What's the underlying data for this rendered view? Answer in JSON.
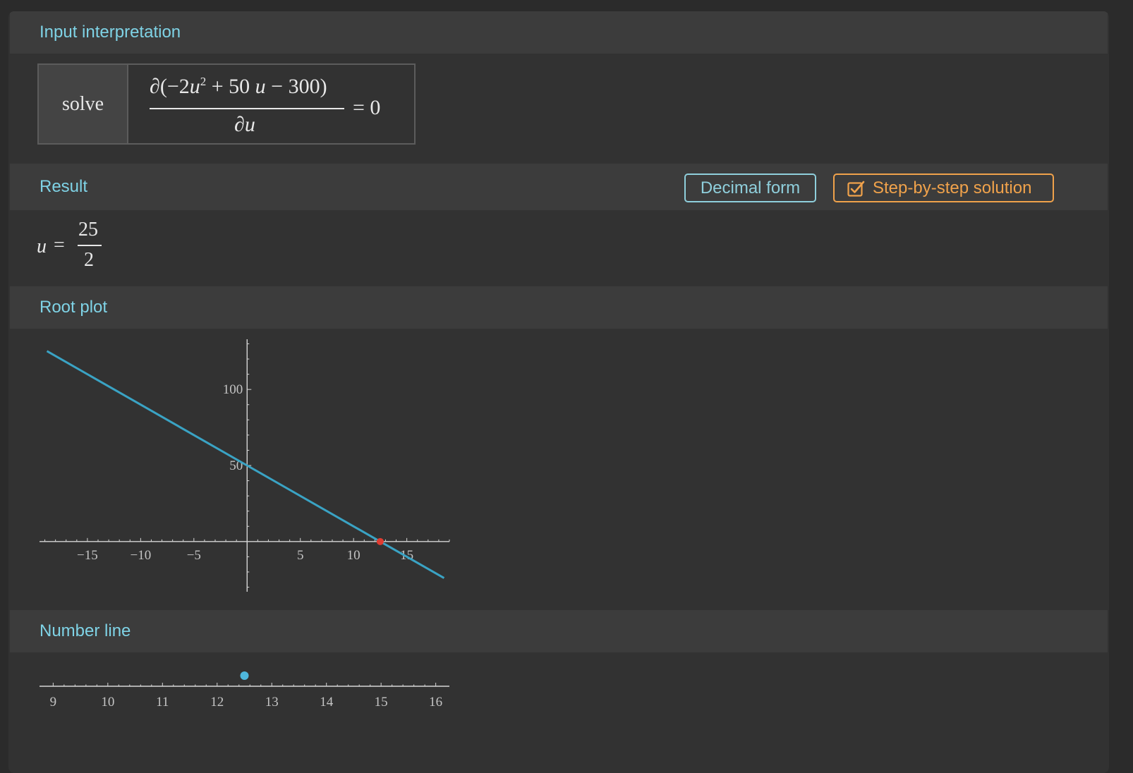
{
  "colors": {
    "accent_title": "#7fd3e6",
    "button_decimal": "#8fcfdc",
    "button_step": "#f0a24b",
    "plot_line": "#3aa3c4",
    "root_marker": "#e03c31",
    "number_line_point": "#4fb7dc"
  },
  "pods": {
    "input_title": "Input interpretation",
    "result_title": "Result",
    "root_plot_title": "Root plot",
    "number_line_title": "Number line"
  },
  "input": {
    "solve_label": "solve",
    "partial_open": "∂(−2",
    "var_u": "u",
    "exponent": "2",
    "middle": " + 50 ",
    "tail": " − 300)",
    "denominator": "∂u",
    "equals_rhs": "= 0"
  },
  "buttons": {
    "decimal_form": "Decimal form",
    "step_by_step": "Step-by-step solution",
    "step_icon": "checkbox-icon"
  },
  "result": {
    "variable": "u",
    "equals": "=",
    "numerator": "25",
    "denominator": "2"
  },
  "chart_data": [
    {
      "type": "line",
      "x_range": [
        -19.5,
        19
      ],
      "y_range": [
        -33,
        133
      ],
      "series": [
        {
          "x": [
            -18.8,
            -10,
            0,
            10,
            12.5,
            18.5
          ],
          "y": [
            125.2,
            90,
            50,
            10,
            0,
            -24
          ]
        }
      ],
      "root": {
        "x": 12.5,
        "y": 0
      },
      "x_ticks": [
        -15,
        -10,
        -5,
        5,
        10,
        15
      ],
      "x_tick_labels": [
        "−15",
        "−10",
        "−5",
        "5",
        "10",
        "15"
      ],
      "y_ticks": [
        50,
        100
      ],
      "y_tick_labels": [
        "50",
        "100"
      ],
      "grid": false
    },
    {
      "type": "scatter",
      "x_range": [
        8.75,
        16.25
      ],
      "points": [
        12.5
      ],
      "x_ticks": [
        9,
        10,
        11,
        12,
        13,
        14,
        15,
        16
      ],
      "x_tick_labels": [
        "9",
        "10",
        "11",
        "12",
        "13",
        "14",
        "15",
        "16"
      ],
      "grid": false
    }
  ]
}
